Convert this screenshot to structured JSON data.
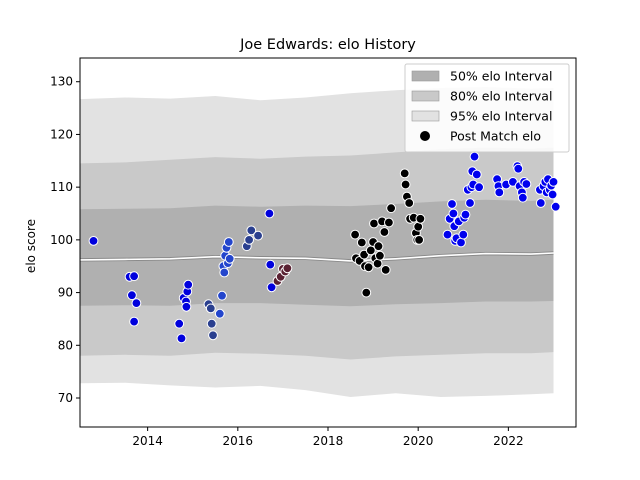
{
  "chart_data": {
    "type": "scatter",
    "title": "Joe Edwards: elo History",
    "xlabel": "",
    "ylabel": "elo score",
    "xlim": [
      2012.5,
      2023.5
    ],
    "ylim": [
      64.5,
      134.5
    ],
    "xticks": [
      2014,
      2016,
      2018,
      2020,
      2022
    ],
    "yticks": [
      70,
      80,
      90,
      100,
      110,
      120,
      130
    ],
    "legend": {
      "position": "top-right",
      "entries": [
        {
          "label": "50% elo Interval",
          "color": "#b0b0b0"
        },
        {
          "label": "80% elo Interval",
          "color": "#c9c9c9"
        },
        {
          "label": "95% elo Interval",
          "color": "#e2e2e2"
        },
        {
          "label": "Post Match elo",
          "color": "#000000"
        }
      ]
    },
    "bands": {
      "x": [
        2012.5,
        2013.5,
        2014.5,
        2015.5,
        2016.5,
        2017.5,
        2018.5,
        2019.5,
        2020.5,
        2021.5,
        2022.5,
        2023.0
      ],
      "median": [
        96.2,
        96.3,
        96.4,
        96.8,
        96.6,
        96.5,
        96.0,
        96.4,
        97.0,
        97.4,
        97.3,
        97.5
      ],
      "p50": [
        [
          87.5,
          105.8
        ],
        [
          87.6,
          105.9
        ],
        [
          87.5,
          106.0
        ],
        [
          88.0,
          106.5
        ],
        [
          88.0,
          106.3
        ],
        [
          87.7,
          106.5
        ],
        [
          87.4,
          106.4
        ],
        [
          87.8,
          106.8
        ],
        [
          88.0,
          107.3
        ],
        [
          88.3,
          107.6
        ],
        [
          88.3,
          107.4
        ],
        [
          88.4,
          107.6
        ]
      ],
      "p80": [
        [
          78.0,
          114.5
        ],
        [
          78.2,
          114.7
        ],
        [
          78.0,
          115.2
        ],
        [
          78.6,
          115.7
        ],
        [
          78.4,
          115.4
        ],
        [
          78.0,
          115.8
        ],
        [
          77.3,
          116.0
        ],
        [
          77.9,
          116.6
        ],
        [
          78.2,
          117.2
        ],
        [
          78.5,
          117.5
        ],
        [
          78.5,
          117.3
        ],
        [
          78.7,
          117.5
        ]
      ],
      "p95": [
        [
          72.8,
          126.7
        ],
        [
          72.9,
          127.0
        ],
        [
          72.4,
          126.8
        ],
        [
          72.0,
          127.3
        ],
        [
          72.3,
          126.5
        ],
        [
          71.5,
          127.0
        ],
        [
          70.2,
          127.8
        ],
        [
          70.9,
          128.4
        ],
        [
          70.2,
          128.8
        ],
        [
          70.4,
          129.0
        ],
        [
          70.7,
          128.7
        ],
        [
          70.9,
          128.8
        ]
      ]
    },
    "series": [
      {
        "name": "",
        "color": "#0000dd",
        "points": [
          [
            2012.8,
            99.8
          ],
          [
            2013.6,
            93.0
          ],
          [
            2013.7,
            93.1
          ],
          [
            2013.65,
            89.5
          ],
          [
            2013.75,
            88.0
          ],
          [
            2013.7,
            84.5
          ],
          [
            2014.7,
            84.1
          ],
          [
            2014.75,
            81.3
          ],
          [
            2014.8,
            89.0
          ],
          [
            2014.85,
            88.3
          ],
          [
            2014.88,
            90.2
          ],
          [
            2014.9,
            91.5
          ],
          [
            2014.86,
            87.3
          ]
        ]
      },
      {
        "name": "",
        "color": "#2a3f8f",
        "points": [
          [
            2015.35,
            87.8
          ],
          [
            2015.4,
            87.0
          ],
          [
            2015.42,
            84.1
          ],
          [
            2015.45,
            81.9
          ]
        ]
      },
      {
        "name": "",
        "color": "#2345cc",
        "points": [
          [
            2015.6,
            86.0
          ],
          [
            2015.65,
            89.4
          ],
          [
            2015.68,
            95.0
          ],
          [
            2015.7,
            93.8
          ],
          [
            2015.72,
            97.0
          ],
          [
            2015.75,
            98.5
          ],
          [
            2015.8,
            99.6
          ],
          [
            2015.78,
            95.6
          ],
          [
            2015.82,
            96.4
          ]
        ]
      },
      {
        "name": "",
        "color": "#2a3f8f",
        "points": [
          [
            2016.2,
            98.8
          ],
          [
            2016.25,
            100.0
          ],
          [
            2016.3,
            101.8
          ],
          [
            2016.45,
            100.8
          ]
        ]
      },
      {
        "name": "",
        "color": "#0000dd",
        "points": [
          [
            2016.7,
            105.0
          ],
          [
            2016.72,
            95.3
          ],
          [
            2016.75,
            91.0
          ]
        ]
      },
      {
        "name": "",
        "color": "#5a2233",
        "points": [
          [
            2016.88,
            92.2
          ],
          [
            2016.95,
            93.0
          ],
          [
            2017.0,
            94.5
          ],
          [
            2017.05,
            94.0
          ],
          [
            2017.1,
            94.6
          ]
        ]
      },
      {
        "name": "",
        "color": "#000000",
        "points": [
          [
            2018.6,
            101.0
          ],
          [
            2018.62,
            96.5
          ],
          [
            2018.7,
            96.0
          ],
          [
            2018.75,
            99.5
          ],
          [
            2018.8,
            97.2
          ],
          [
            2018.82,
            95.0
          ],
          [
            2018.85,
            90.0
          ],
          [
            2018.9,
            94.8
          ],
          [
            2018.95,
            98.0
          ],
          [
            2019.0,
            99.6
          ],
          [
            2019.02,
            103.1
          ],
          [
            2019.05,
            96.5
          ],
          [
            2019.1,
            95.5
          ],
          [
            2019.12,
            98.8
          ],
          [
            2019.15,
            97.0
          ],
          [
            2019.2,
            103.5
          ],
          [
            2019.25,
            101.5
          ],
          [
            2019.28,
            94.3
          ],
          [
            2019.35,
            103.3
          ],
          [
            2019.4,
            106.0
          ],
          [
            2019.7,
            112.6
          ],
          [
            2019.72,
            110.5
          ],
          [
            2019.75,
            108.2
          ],
          [
            2019.8,
            107.0
          ],
          [
            2019.82,
            104.0
          ],
          [
            2019.9,
            104.2
          ],
          [
            2019.95,
            101.3
          ],
          [
            2019.98,
            100.0
          ],
          [
            2020.0,
            102.5
          ],
          [
            2020.02,
            100.0
          ],
          [
            2020.05,
            104.0
          ]
        ]
      },
      {
        "name": "",
        "color": "#0000ee",
        "points": [
          [
            2020.65,
            101.0
          ],
          [
            2020.7,
            104.0
          ],
          [
            2020.75,
            106.8
          ],
          [
            2020.78,
            105.0
          ],
          [
            2020.8,
            102.6
          ],
          [
            2020.82,
            99.8
          ],
          [
            2020.85,
            100.3
          ],
          [
            2020.9,
            103.5
          ],
          [
            2020.95,
            99.5
          ],
          [
            2021.0,
            101.0
          ],
          [
            2021.02,
            104.2
          ],
          [
            2021.05,
            104.8
          ],
          [
            2021.1,
            109.5
          ],
          [
            2021.15,
            107.0
          ],
          [
            2021.18,
            110.0
          ],
          [
            2021.2,
            113.0
          ],
          [
            2021.22,
            110.5
          ],
          [
            2021.25,
            115.8
          ],
          [
            2021.3,
            112.4
          ],
          [
            2021.35,
            110.0
          ],
          [
            2021.75,
            111.5
          ],
          [
            2021.78,
            110.2
          ],
          [
            2021.8,
            109.0
          ],
          [
            2021.95,
            110.5
          ],
          [
            2022.1,
            111.0
          ],
          [
            2022.2,
            114.0
          ],
          [
            2022.22,
            113.5
          ],
          [
            2022.25,
            110.2
          ],
          [
            2022.3,
            109.0
          ],
          [
            2022.32,
            108.0
          ],
          [
            2022.35,
            111.0
          ],
          [
            2022.4,
            110.6
          ],
          [
            2022.7,
            109.5
          ],
          [
            2022.72,
            107.0
          ],
          [
            2022.78,
            110.2
          ],
          [
            2022.82,
            111.0
          ],
          [
            2022.85,
            109.0
          ],
          [
            2022.88,
            111.5
          ],
          [
            2022.92,
            109.5
          ],
          [
            2022.95,
            110.3
          ],
          [
            2022.98,
            108.6
          ],
          [
            2023.0,
            111.0
          ],
          [
            2023.05,
            106.3
          ]
        ]
      }
    ]
  }
}
